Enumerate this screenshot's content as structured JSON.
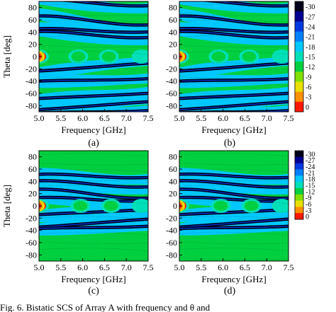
{
  "chart_data": [
    {
      "type": "heatmap",
      "panel_label": "(a)",
      "xlabel": "Frequency [GHz]",
      "ylabel": "Theta [deg]",
      "xlim": [
        5.0,
        7.5
      ],
      "ylim": [
        -90,
        90
      ],
      "x_ticks": [
        "5.0",
        "5.5",
        "6.0",
        "6.5",
        "7.0",
        "7.5"
      ],
      "y_ticks": [
        "80",
        "60",
        "40",
        "20",
        "0",
        "-20",
        "-40",
        "-60",
        "-80"
      ],
      "colorbar": true,
      "contour_features": {
        "dark_bands_deg": [
          -90,
          88,
          59,
          43,
          36,
          -17,
          -38,
          -64,
          -80
        ],
        "hot_spots": [
          {
            "freq": 5.0,
            "theta": 0,
            "level": 0
          },
          {
            "freq": 5.9,
            "theta": 0,
            "level": -12
          },
          {
            "freq": 6.6,
            "theta": 0,
            "level": -12
          },
          {
            "freq": 7.35,
            "theta": 0,
            "level": -15
          }
        ]
      }
    },
    {
      "type": "heatmap",
      "panel_label": "(b)",
      "xlabel": "Frequency [GHz]",
      "ylabel": "",
      "xlim": [
        5.0,
        7.5
      ],
      "ylim": [
        -90,
        90
      ],
      "x_ticks": [
        "5.0",
        "5.5",
        "6.0",
        "6.5",
        "7.0",
        "7.5"
      ],
      "y_ticks": [
        "80",
        "60",
        "40",
        "20",
        "0",
        "-20",
        "-40",
        "-60",
        "-80"
      ],
      "colorbar": true,
      "contour_features": {
        "dark_bands_deg": [
          -90,
          88,
          59,
          43,
          36,
          -17,
          -38,
          -64,
          -80
        ],
        "hot_spots": [
          {
            "freq": 5.0,
            "theta": 0,
            "level": 0
          },
          {
            "freq": 5.9,
            "theta": 0,
            "level": -12
          },
          {
            "freq": 6.6,
            "theta": 0,
            "level": -12
          },
          {
            "freq": 7.35,
            "theta": 0,
            "level": -15
          }
        ]
      }
    },
    {
      "type": "heatmap",
      "panel_label": "(c)",
      "xlabel": "Frequency [GHz]",
      "ylabel": "Theta [deg]",
      "xlim": [
        5.0,
        7.5
      ],
      "ylim": [
        -90,
        90
      ],
      "x_ticks": [
        "5.0",
        "5.5",
        "6.0",
        "6.5",
        "7.0",
        "7.5"
      ],
      "y_ticks": [
        "80",
        "60",
        "40",
        "20",
        "0",
        "-20",
        "-40",
        "-60",
        "-80"
      ],
      "colorbar": false,
      "contour_features": {
        "dark_bands_deg": [
          49,
          36,
          20,
          11,
          -10,
          -28,
          -35
        ],
        "hot_spots": [
          {
            "freq": 5.0,
            "theta": 0,
            "level": 0
          },
          {
            "freq": 5.95,
            "theta": 0,
            "level": -12
          },
          {
            "freq": 6.65,
            "theta": 0,
            "level": -12
          },
          {
            "freq": 7.35,
            "theta": 0,
            "level": -15
          }
        ]
      }
    },
    {
      "type": "heatmap",
      "panel_label": "(d)",
      "xlabel": "Frequency [GHz]",
      "ylabel": "",
      "xlim": [
        5.0,
        7.5
      ],
      "ylim": [
        -90,
        90
      ],
      "x_ticks": [
        "5.0",
        "5.5",
        "6.0",
        "6.5",
        "7.0",
        "7.5"
      ],
      "y_ticks": [
        "80",
        "60",
        "40",
        "20",
        "0",
        "-20",
        "-40",
        "-60",
        "-80"
      ],
      "colorbar": true,
      "contour_features": {
        "dark_bands_deg": [
          49,
          36,
          20,
          11,
          -10,
          -28,
          -35
        ],
        "hot_spots": [
          {
            "freq": 5.0,
            "theta": 0,
            "level": 0
          },
          {
            "freq": 5.95,
            "theta": 0,
            "level": -12
          },
          {
            "freq": 6.65,
            "theta": 0,
            "level": -12
          },
          {
            "freq": 7.35,
            "theta": 0,
            "level": -15
          }
        ]
      }
    }
  ],
  "colorbar": {
    "labels": [
      "-30",
      "-27",
      "-24",
      "-21",
      "-18",
      "-15",
      "-12",
      "-9",
      "-6",
      "-3",
      "0"
    ],
    "colors": [
      "#000018",
      "#000090",
      "#0038e0",
      "#0080ff",
      "#00c8ff",
      "#00e0b8",
      "#00d040",
      "#80e000",
      "#e8e000",
      "#ff9000",
      "#ff1800"
    ]
  },
  "caption_fragment": "Fig. 6.    Bistatic SCS of Array A      with frequency and θ and"
}
